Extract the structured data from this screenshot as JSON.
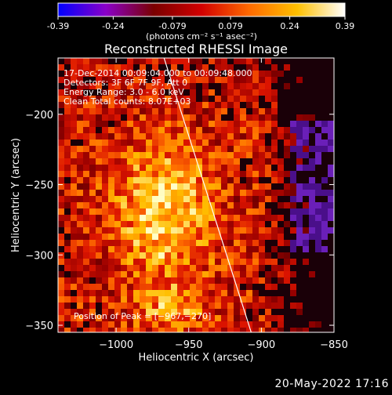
{
  "colorbar": {
    "ticks": [
      "-0.39",
      "-0.24",
      "-0.079",
      "0.079",
      "0.24",
      "0.39"
    ],
    "tick_values": [
      -0.39,
      -0.24,
      -0.079,
      0.079,
      0.24,
      0.39
    ],
    "range": [
      -0.39,
      0.39
    ],
    "units": "(photons cm⁻² s⁻¹ asec⁻²)",
    "colormap": [
      "#0000ff",
      "#8a00c8",
      "#7a0000",
      "#d20000",
      "#ff6a00",
      "#ffc000",
      "#ffffff"
    ]
  },
  "chart_data": {
    "type": "heatmap",
    "title": "Reconstructed RHESSI Image",
    "xlabel": "Heliocentric X (arcsec)",
    "ylabel": "Heliocentric Y (arcsec)",
    "xlim": [
      -1040,
      -850
    ],
    "ylim": [
      -355,
      -160
    ],
    "xticks": [
      -1000,
      -950,
      -900,
      -850
    ],
    "yticks": [
      -200,
      -250,
      -300,
      -350
    ],
    "xtick_labels": [
      "−1000",
      "−950",
      "−900",
      "−850"
    ],
    "ytick_labels": [
      "−200",
      "−250",
      "−300",
      "−350"
    ],
    "limb_line": [
      {
        "x": -967,
        "y": -160
      },
      {
        "x": -907,
        "y": -355
      }
    ],
    "peak": {
      "x": -967,
      "y": -270
    },
    "annotations": {
      "time": "17-Dec-2014 00:09:04.000 to 00:09:48.000",
      "detectors": "Detectors: 3F 6F 7F 9F, Att 0",
      "energy": "Energy Range: 3.0 - 6.0 keV",
      "clean": "Clean     Total counts: 8.07E+03",
      "peak_label": "Position of Peak = [−967,−270]"
    }
  },
  "footer": {
    "timestamp": "20-May-2022 17:16"
  }
}
